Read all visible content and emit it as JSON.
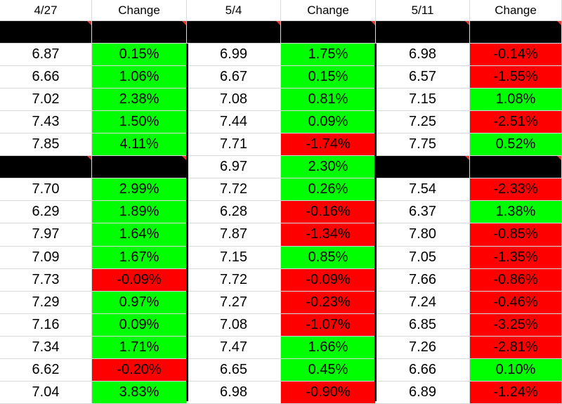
{
  "headers": [
    "4/27",
    "Change",
    "5/4",
    "Change",
    "5/11",
    "Change"
  ],
  "colors": {
    "green": "#00ff00",
    "red": "#ff0000",
    "black": "#000000",
    "white": "#ffffff"
  },
  "rows": [
    [
      [
        "",
        "k"
      ],
      [
        "",
        "k"
      ],
      [
        "",
        "k"
      ],
      [
        "",
        "k"
      ],
      [
        "",
        "k"
      ],
      [
        "",
        "k"
      ]
    ],
    [
      [
        "6.87",
        "w"
      ],
      [
        "0.15%",
        "g"
      ],
      [
        "6.99",
        "w"
      ],
      [
        "1.75%",
        "g"
      ],
      [
        "6.98",
        "w"
      ],
      [
        "-0.14%",
        "r"
      ]
    ],
    [
      [
        "6.66",
        "w"
      ],
      [
        "1.06%",
        "g"
      ],
      [
        "6.67",
        "w"
      ],
      [
        "0.15%",
        "g"
      ],
      [
        "6.57",
        "w"
      ],
      [
        "-1.55%",
        "r"
      ]
    ],
    [
      [
        "7.02",
        "w"
      ],
      [
        "2.38%",
        "g"
      ],
      [
        "7.08",
        "w"
      ],
      [
        "0.81%",
        "g"
      ],
      [
        "7.15",
        "w"
      ],
      [
        "1.08%",
        "g"
      ]
    ],
    [
      [
        "7.43",
        "w"
      ],
      [
        "1.50%",
        "g"
      ],
      [
        "7.44",
        "w"
      ],
      [
        "0.09%",
        "g"
      ],
      [
        "7.25",
        "w"
      ],
      [
        "-2.51%",
        "r"
      ]
    ],
    [
      [
        "7.85",
        "w"
      ],
      [
        "4.11%",
        "g"
      ],
      [
        "7.71",
        "w"
      ],
      [
        "-1.74%",
        "r"
      ],
      [
        "7.75",
        "w"
      ],
      [
        "0.52%",
        "g"
      ]
    ],
    [
      [
        "",
        "k"
      ],
      [
        "",
        "k"
      ],
      [
        "6.97",
        "w"
      ],
      [
        "2.30%",
        "g"
      ],
      [
        "",
        "k"
      ],
      [
        "",
        "k"
      ]
    ],
    [
      [
        "7.70",
        "w"
      ],
      [
        "2.99%",
        "g"
      ],
      [
        "7.72",
        "w"
      ],
      [
        "0.26%",
        "g"
      ],
      [
        "7.54",
        "w"
      ],
      [
        "-2.33%",
        "r"
      ]
    ],
    [
      [
        "6.29",
        "w"
      ],
      [
        "1.89%",
        "g"
      ],
      [
        "6.28",
        "w"
      ],
      [
        "-0.16%",
        "r"
      ],
      [
        "6.37",
        "w"
      ],
      [
        "1.38%",
        "g"
      ]
    ],
    [
      [
        "7.97",
        "w"
      ],
      [
        "1.64%",
        "g"
      ],
      [
        "7.87",
        "w"
      ],
      [
        "-1.34%",
        "r"
      ],
      [
        "7.80",
        "w"
      ],
      [
        "-0.85%",
        "r"
      ]
    ],
    [
      [
        "7.09",
        "w"
      ],
      [
        "1.67%",
        "g"
      ],
      [
        "7.15",
        "w"
      ],
      [
        "0.85%",
        "g"
      ],
      [
        "7.05",
        "w"
      ],
      [
        "-1.35%",
        "r"
      ]
    ],
    [
      [
        "7.73",
        "w"
      ],
      [
        "-0.09%",
        "r"
      ],
      [
        "7.72",
        "w"
      ],
      [
        "-0.09%",
        "r"
      ],
      [
        "7.66",
        "w"
      ],
      [
        "-0.86%",
        "r"
      ]
    ],
    [
      [
        "7.29",
        "w"
      ],
      [
        "0.97%",
        "g"
      ],
      [
        "7.27",
        "w"
      ],
      [
        "-0.23%",
        "r"
      ],
      [
        "7.24",
        "w"
      ],
      [
        "-0.46%",
        "r"
      ]
    ],
    [
      [
        "7.16",
        "w"
      ],
      [
        "0.09%",
        "g"
      ],
      [
        "7.08",
        "w"
      ],
      [
        "-1.07%",
        "r"
      ],
      [
        "6.85",
        "w"
      ],
      [
        "-3.25%",
        "r"
      ]
    ],
    [
      [
        "7.34",
        "w"
      ],
      [
        "1.71%",
        "g"
      ],
      [
        "7.47",
        "w"
      ],
      [
        "1.66%",
        "g"
      ],
      [
        "7.26",
        "w"
      ],
      [
        "-2.81%",
        "r"
      ]
    ],
    [
      [
        "6.62",
        "w"
      ],
      [
        "-0.20%",
        "r"
      ],
      [
        "6.65",
        "w"
      ],
      [
        "0.45%",
        "g"
      ],
      [
        "6.66",
        "w"
      ],
      [
        "0.10%",
        "g"
      ]
    ],
    [
      [
        "7.04",
        "w"
      ],
      [
        "3.83%",
        "g"
      ],
      [
        "6.98",
        "w"
      ],
      [
        "-0.90%",
        "r"
      ],
      [
        "6.89",
        "w"
      ],
      [
        "-1.24%",
        "r"
      ]
    ]
  ]
}
